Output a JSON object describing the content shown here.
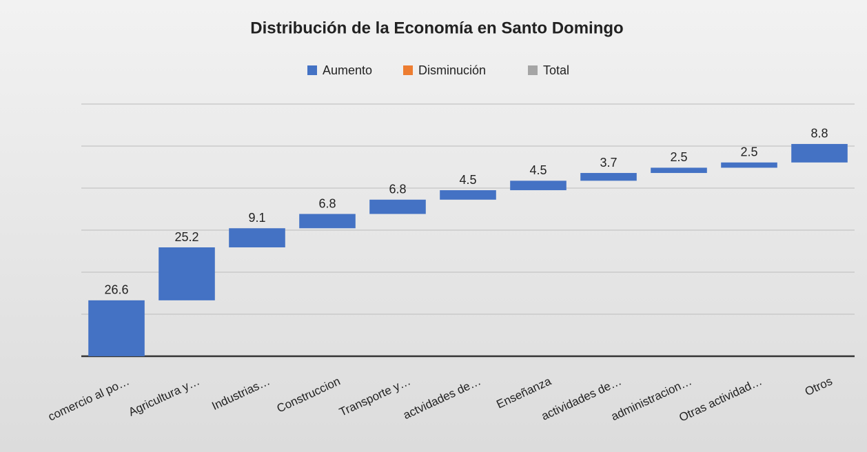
{
  "chart_data": {
    "type": "waterfall",
    "title": "Distribución de la Economía en Santo Domingo",
    "legend": [
      {
        "name": "Aumento",
        "color": "#4472c4"
      },
      {
        "name": "Disminución",
        "color": "#ed7d31"
      },
      {
        "name": "Total",
        "color": "#a5a5a5"
      }
    ],
    "legend_position": "top",
    "categories": [
      "comercio al po…",
      "Agricultura y…",
      "Industrias…",
      "Construccion",
      "Transporte y…",
      "actvidades de…",
      "Enseñanza",
      "actividades de…",
      "administracion…",
      "Otras actividad…",
      "Otros"
    ],
    "values": [
      26.6,
      25.2,
      9.1,
      6.8,
      6.8,
      4.5,
      4.5,
      3.7,
      2.5,
      2.5,
      8.8
    ],
    "color": "#4472c4",
    "ylim": [
      0,
      120
    ],
    "yticks": [
      0,
      20,
      40,
      60,
      80,
      100,
      120
    ],
    "grid": true
  }
}
